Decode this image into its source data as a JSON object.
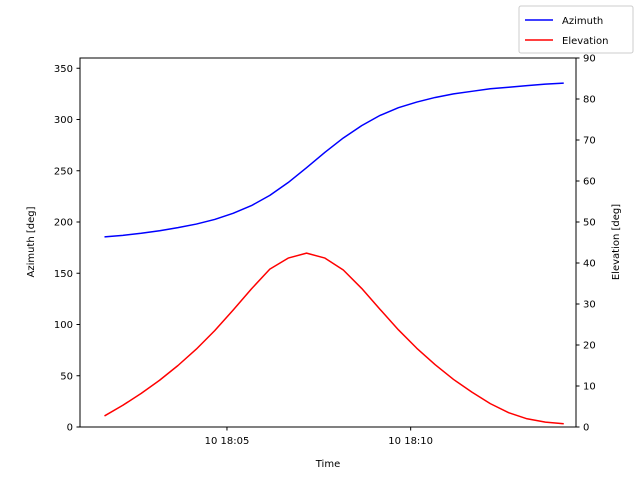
{
  "chart_data": {
    "type": "line",
    "xlabel": "Time",
    "ylabel_left": "Azimuth [deg]",
    "ylabel_right": "Elevation [deg]",
    "x_range": [
      "10 18:01",
      "10 18:14:30"
    ],
    "x_ticks": [
      {
        "t": "10 18:05",
        "label": "10 18:05"
      },
      {
        "t": "10 18:10",
        "label": "10 18:10"
      }
    ],
    "ylim_left": [
      0,
      360
    ],
    "yticks_left": [
      0,
      50,
      100,
      150,
      200,
      250,
      300,
      350
    ],
    "ylim_right": [
      0,
      90
    ],
    "yticks_right": [
      0,
      10,
      20,
      30,
      40,
      50,
      60,
      70,
      80,
      90
    ],
    "grid": false,
    "legend_position": "top-right",
    "x": [
      "10 18:01:40",
      "10 18:02:10",
      "10 18:02:40",
      "10 18:03:10",
      "10 18:03:40",
      "10 18:04:10",
      "10 18:04:40",
      "10 18:05:10",
      "10 18:05:40",
      "10 18:06:10",
      "10 18:06:40",
      "10 18:07:10",
      "10 18:07:40",
      "10 18:08:10",
      "10 18:08:40",
      "10 18:09:10",
      "10 18:09:40",
      "10 18:10:10",
      "10 18:10:40",
      "10 18:11:10",
      "10 18:11:40",
      "10 18:12:10",
      "10 18:12:40",
      "10 18:13:10",
      "10 18:13:40",
      "10 18:14:10"
    ],
    "series": [
      {
        "name": "Azimuth",
        "axis": "left",
        "color": "#0000ff",
        "values": [
          185.5,
          187,
          189,
          191.5,
          194.5,
          198,
          202.5,
          208.5,
          216,
          226,
          238.5,
          253,
          268,
          282,
          294,
          304,
          311.5,
          317,
          321.5,
          325,
          327.5,
          330,
          331.5,
          333,
          334.5,
          335.5
        ]
      },
      {
        "name": "Elevation",
        "axis": "right",
        "color": "#ff0000",
        "values": [
          2.7,
          5.3,
          8.2,
          11.4,
          15,
          19,
          23.5,
          28.5,
          33.7,
          38.5,
          41.2,
          42.4,
          41.2,
          38.3,
          33.8,
          28.7,
          23.7,
          19.2,
          15.2,
          11.6,
          8.5,
          5.7,
          3.5,
          2,
          1.2,
          0.8
        ]
      }
    ]
  }
}
